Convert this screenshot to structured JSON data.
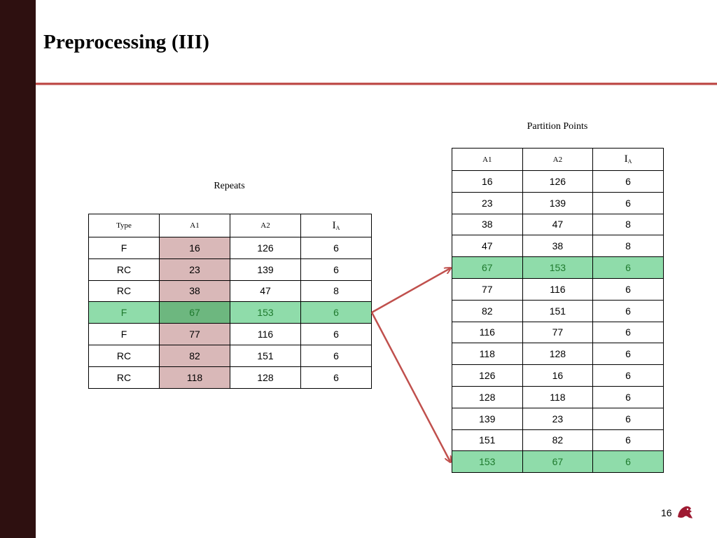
{
  "title": "Preprocessing (III)",
  "repeats": {
    "caption": "Repeats",
    "headers": {
      "type": "Type",
      "a1": "A1",
      "a2": "A2",
      "ia_main": "I",
      "ia_sub": "A"
    },
    "rows": [
      {
        "type": "F",
        "a1": "16",
        "a2": "126",
        "ia": "6"
      },
      {
        "type": "RC",
        "a1": "23",
        "a2": "139",
        "ia": "6"
      },
      {
        "type": "RC",
        "a1": "38",
        "a2": "47",
        "ia": "8"
      },
      {
        "type": "F",
        "a1": "67",
        "a2": "153",
        "ia": "6"
      },
      {
        "type": "F",
        "a1": "77",
        "a2": "116",
        "ia": "6"
      },
      {
        "type": "RC",
        "a1": "82",
        "a2": "151",
        "ia": "6"
      },
      {
        "type": "RC",
        "a1": "118",
        "a2": "128",
        "ia": "6"
      }
    ]
  },
  "partition": {
    "caption": "Partition Points",
    "headers": {
      "a1": "A1",
      "a2": "A2",
      "ia_main": "I",
      "ia_sub": "A"
    },
    "rows": [
      {
        "a1": "16",
        "a2": "126",
        "ia": "6"
      },
      {
        "a1": "23",
        "a2": "139",
        "ia": "6"
      },
      {
        "a1": "38",
        "a2": "47",
        "ia": "8"
      },
      {
        "a1": "47",
        "a2": "38",
        "ia": "8"
      },
      {
        "a1": "67",
        "a2": "153",
        "ia": "6"
      },
      {
        "a1": "77",
        "a2": "116",
        "ia": "6"
      },
      {
        "a1": "82",
        "a2": "151",
        "ia": "6"
      },
      {
        "a1": "116",
        "a2": "77",
        "ia": "6"
      },
      {
        "a1": "118",
        "a2": "128",
        "ia": "6"
      },
      {
        "a1": "126",
        "a2": "16",
        "ia": "6"
      },
      {
        "a1": "128",
        "a2": "118",
        "ia": "6"
      },
      {
        "a1": "139",
        "a2": "23",
        "ia": "6"
      },
      {
        "a1": "151",
        "a2": "82",
        "ia": "6"
      },
      {
        "a1": "153",
        "a2": "67",
        "ia": "6"
      }
    ]
  },
  "page_number": "16",
  "colors": {
    "sidebar": "#2e1010",
    "accent": "#c0504d",
    "highlight_green": "#8fdcaa",
    "highlight_pink": "#d9b8b8"
  },
  "icons": {
    "logo": "cougar-logo-icon"
  }
}
